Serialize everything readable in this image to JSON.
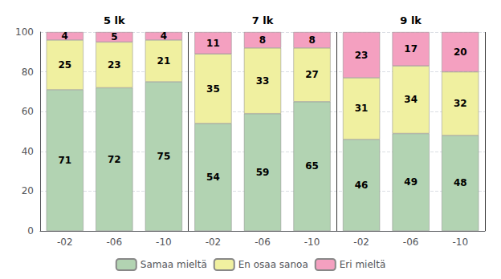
{
  "chart_data": {
    "type": "bar",
    "categories": [
      "-02",
      "-06",
      "-10",
      "-02",
      "-06",
      "-10",
      "-02",
      "-06",
      "-10"
    ],
    "annotations": [
      "5 lk",
      "7 lk",
      "9 lk"
    ],
    "series": [
      {
        "name": "Samaa mieltä",
        "color": "#b2d3b2",
        "values": [
          71,
          72,
          75,
          54,
          59,
          65,
          46,
          49,
          48
        ]
      },
      {
        "name": "En osaa sanoa",
        "color": "#f0f0a0",
        "values": [
          25,
          23,
          21,
          35,
          33,
          27,
          31,
          34,
          32
        ]
      },
      {
        "name": "Eri mieltä",
        "color": "#f4a0c0",
        "values": [
          4,
          5,
          4,
          11,
          8,
          8,
          23,
          17,
          20
        ]
      }
    ],
    "stacked": true,
    "data_labels": true,
    "ylim": [
      0,
      100
    ],
    "yticks": [
      0,
      20,
      40,
      60,
      80,
      100
    ],
    "grid": true,
    "legend": "bottom"
  }
}
